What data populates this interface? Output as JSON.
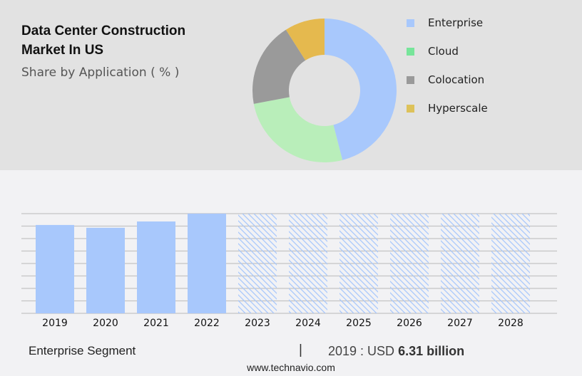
{
  "header": {
    "title_line1": "Data Center Construction",
    "title_line2": "Market In US",
    "subtitle": "Share by Application ( % )"
  },
  "legend": [
    {
      "label": "Enterprise",
      "color": "#a8c8fc"
    },
    {
      "label": "Cloud",
      "color": "#77e59a"
    },
    {
      "label": "Colocation",
      "color": "#9a9a9a"
    },
    {
      "label": "Hyperscale",
      "color": "#ddc25a"
    }
  ],
  "footer": {
    "segment": "Enterprise Segment",
    "separator": "|",
    "value_prefix": "2019 : USD ",
    "value": "6.31 billion",
    "url": "www.technavio.com"
  },
  "chart_data": [
    {
      "type": "pie",
      "title": "Data Center Construction Market In US - Share by Application ( % )",
      "donut": true,
      "categories": [
        "Enterprise",
        "Cloud",
        "Colocation",
        "Hyperscale"
      ],
      "values": [
        46,
        26,
        19,
        9
      ],
      "colors": [
        "#a8c8fc",
        "#b9eeba",
        "#9a9a9a",
        "#e5b94e"
      ],
      "legend_position": "right"
    },
    {
      "type": "bar",
      "title": "Enterprise Segment",
      "categories": [
        "2019",
        "2020",
        "2021",
        "2022",
        "2023",
        "2024",
        "2025",
        "2026",
        "2027",
        "2028"
      ],
      "values": [
        6.31,
        6.11,
        6.56,
        7.12,
        null,
        null,
        null,
        null,
        null,
        null
      ],
      "forecast": [
        false,
        false,
        false,
        false,
        true,
        true,
        true,
        true,
        true,
        true
      ],
      "unit": "USD billion",
      "xlabel": "",
      "ylabel": "",
      "grid": true,
      "annotation": "2019 : USD 6.31 billion",
      "color": "#a8c8fc"
    }
  ]
}
